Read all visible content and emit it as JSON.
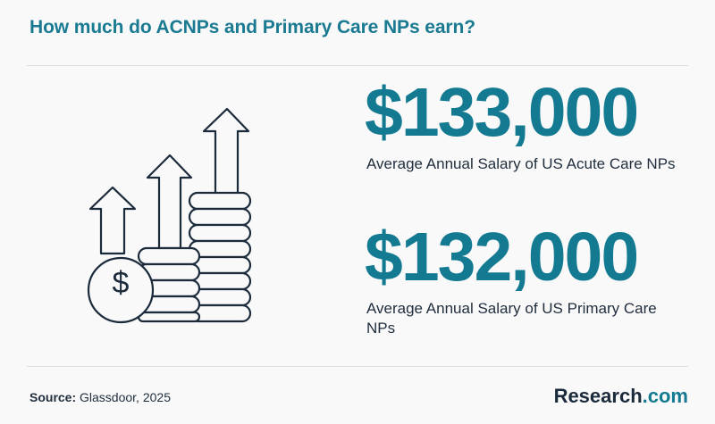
{
  "header": {
    "title": "How much do ACNPs and Primary Care NPs earn?"
  },
  "illustration": {
    "icon": "coins-growth-arrows-icon",
    "coin_symbol": "$"
  },
  "stats": [
    {
      "value": "$133,000",
      "label": "Average Annual Salary of US Acute Care NPs"
    },
    {
      "value": "$132,000",
      "label": "Average Annual Salary of US Primary Care NPs"
    }
  ],
  "footer": {
    "source_label": "Source:",
    "source_text": "Glassdoor, 2025",
    "brand_name": "Research",
    "brand_tld": ".com"
  },
  "colors": {
    "accent": "#137a92",
    "text": "#1f2d3d",
    "background": "#f9f9f9"
  }
}
